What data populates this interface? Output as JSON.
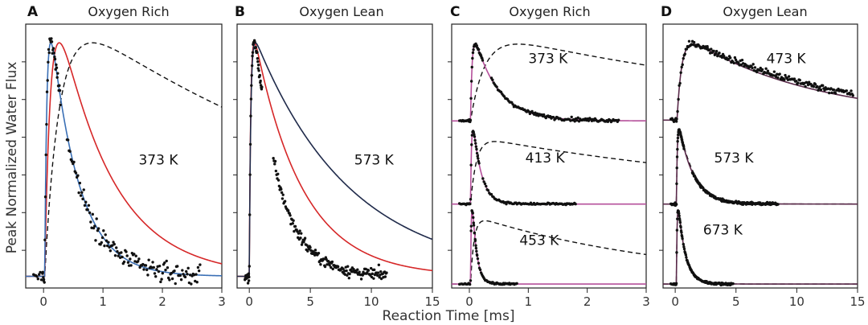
{
  "figure": {
    "ylabel": "Peak Normalized Water Flux",
    "xlabel": "Reaction Time [ms]"
  },
  "colors": {
    "data_points": "#111111",
    "dashed": "#111111",
    "red": "#d62728",
    "blue": "#3a6fb5",
    "magenta": "#b5509b",
    "navy": "#1f2a4a",
    "dark_purple": "#5a2a4a"
  },
  "chart_data": [
    {
      "type": "scatter",
      "letter": "A",
      "title": "Oxygen Rich",
      "xlim": [
        -0.3,
        3
      ],
      "ylim": [
        -0.05,
        1.08
      ],
      "xticks": [
        0,
        1,
        2,
        3
      ],
      "y_gridlines": false,
      "sub_panels": [
        {
          "label": "373 K",
          "label_pos": [
            1.6,
            0.5
          ],
          "onset": 0.02,
          "scatter": {
            "form": "pulse",
            "rise": 0.04,
            "decay": 0.47,
            "noise": 0.035,
            "x_end": 2.65,
            "count": 170
          },
          "curves": [
            {
              "style": "dashed",
              "color_key": "dashed",
              "form": "pulse",
              "rise": 0.25,
              "decay": 6.0
            },
            {
              "style": "solid",
              "color_key": "red",
              "form": "pulse",
              "rise": 0.11,
              "decay": 0.9
            },
            {
              "style": "solid",
              "color_key": "blue",
              "form": "pulse",
              "rise": 0.04,
              "decay": 0.47
            }
          ]
        }
      ]
    },
    {
      "type": "scatter",
      "letter": "B",
      "title": "Oxygen Lean",
      "xlim": [
        -1,
        15
      ],
      "ylim": [
        -0.05,
        1.08
      ],
      "xticks": [
        0,
        5,
        10,
        15
      ],
      "sub_panels": [
        {
          "label": "573 K",
          "label_pos": [
            8.6,
            0.5
          ],
          "onset": 0.0,
          "scatter": {
            "form": "pulse",
            "rise": 0.15,
            "decay": 2.05,
            "noise": 0.02,
            "x_end": 11.3,
            "count": 220
          },
          "curves": [
            {
              "style": "solid",
              "color_key": "red",
              "form": "pulse",
              "rise": 0.12,
              "decay": 3.9
            },
            {
              "style": "solid",
              "color_key": "navy",
              "form": "pulse",
              "rise": 0.12,
              "decay": 7.8
            }
          ]
        }
      ]
    },
    {
      "type": "scatter",
      "letter": "C",
      "title": "Oxygen Rich",
      "xlim": [
        -0.3,
        3
      ],
      "ylim": [
        -0.05,
        3.25
      ],
      "xticks": [
        0,
        1,
        2,
        3
      ],
      "sub_panels": [
        {
          "label": "373 K",
          "label_pos": [
            1.0,
            2.82
          ],
          "offset": 2.0,
          "amp": 1.0,
          "onset": 0.02,
          "scatter": {
            "form": "pulse",
            "rise": 0.03,
            "decay": 0.4,
            "noise": 0.018,
            "x_end": 2.55,
            "count": 150,
            "baseline": 0.045
          },
          "curves": [
            {
              "style": "dashed",
              "color_key": "dashed",
              "form": "pulse",
              "rise": 0.25,
              "decay": 6.0,
              "baseline": 0.04
            },
            {
              "style": "solid",
              "color_key": "magenta",
              "form": "pulse",
              "rise": 0.03,
              "decay": 0.4,
              "baseline": 0.04
            }
          ]
        },
        {
          "label": "413 K",
          "label_pos": [
            0.95,
            1.58
          ],
          "offset": 1.0,
          "amp": 0.92,
          "onset": 0.02,
          "scatter": {
            "form": "pulse",
            "rise": 0.02,
            "decay": 0.14,
            "noise": 0.012,
            "x_end": 1.82,
            "count": 110
          },
          "curves": [
            {
              "style": "dashed",
              "color_key": "dashed",
              "form": "pulse",
              "rise": 0.1,
              "decay": 6.0,
              "scale": 0.85
            },
            {
              "style": "solid",
              "color_key": "magenta",
              "form": "pulse",
              "rise": 0.02,
              "decay": 0.14
            }
          ]
        },
        {
          "label": "453 K",
          "label_pos": [
            0.85,
            0.55
          ],
          "offset": 0.0,
          "amp": 0.92,
          "onset": 0.02,
          "scatter": {
            "form": "pulse",
            "rise": 0.015,
            "decay": 0.075,
            "noise": 0.01,
            "x_end": 0.82,
            "count": 70
          },
          "curves": [
            {
              "style": "dashed",
              "color_key": "dashed",
              "form": "pulse",
              "rise": 0.06,
              "decay": 3.5,
              "scale": 0.86
            },
            {
              "style": "solid",
              "color_key": "magenta",
              "form": "pulse",
              "rise": 0.015,
              "decay": 0.075
            }
          ]
        }
      ]
    },
    {
      "type": "scatter",
      "letter": "D",
      "title": "Oxygen Lean",
      "xlim": [
        -1,
        15
      ],
      "ylim": [
        -0.05,
        3.25
      ],
      "xticks": [
        0,
        5,
        10,
        15
      ],
      "sub_panels": [
        {
          "label": "473 K",
          "label_pos": [
            7.5,
            2.82
          ],
          "offset": 2.0,
          "amp": 1.0,
          "onset": 0.15,
          "scatter": {
            "form": "pulse",
            "rise": 0.4,
            "decay": 12.0,
            "noise": 0.035,
            "x_end": 14.7,
            "count": 200,
            "baseline": 0.05
          },
          "curves": [
            {
              "style": "solid",
              "color_key": "dark_purple",
              "form": "pulse",
              "rise": 0.4,
              "decay": 10.5,
              "baseline": 0.05
            }
          ]
        },
        {
          "label": "573 K",
          "label_pos": [
            3.2,
            1.58
          ],
          "offset": 1.0,
          "amp": 0.92,
          "onset": 0.1,
          "scatter": {
            "form": "pulse",
            "rise": 0.08,
            "decay": 1.2,
            "noise": 0.015,
            "x_end": 8.5,
            "count": 200
          },
          "curves": [
            {
              "style": "dashed",
              "color_key": "dashed",
              "form": "pulse",
              "rise": 0.08,
              "decay": 1.3
            },
            {
              "style": "solid",
              "color_key": "dark_purple",
              "form": "pulse",
              "rise": 0.08,
              "decay": 1.2
            }
          ]
        },
        {
          "label": "673 K",
          "label_pos": [
            2.3,
            0.68
          ],
          "offset": 0.0,
          "amp": 0.92,
          "onset": 0.1,
          "scatter": {
            "form": "pulse",
            "rise": 0.06,
            "decay": 0.6,
            "noise": 0.012,
            "x_end": 4.8,
            "count": 130
          },
          "curves": [
            {
              "style": "dashed",
              "color_key": "dashed",
              "form": "pulse",
              "rise": 0.06,
              "decay": 0.65
            },
            {
              "style": "solid",
              "color_key": "dark_purple",
              "form": "pulse",
              "rise": 0.06,
              "decay": 0.6
            }
          ]
        }
      ]
    }
  ]
}
